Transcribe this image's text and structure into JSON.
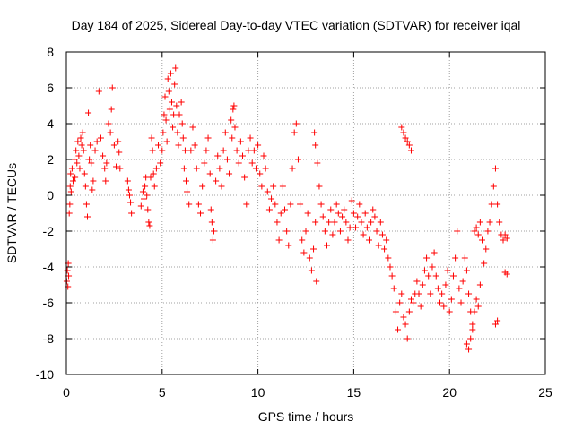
{
  "chart_data": {
    "type": "scatter",
    "title": "Day 184 of 2025, Sidereal Day-to-day VTEC variation (SDTVAR) for receiver iqal",
    "xlabel": "GPS time / hours",
    "ylabel": "SDTVAR / TECUs",
    "xlim": [
      0,
      25
    ],
    "ylim": [
      -10,
      8
    ],
    "xticks": [
      0,
      5,
      10,
      15,
      20,
      25
    ],
    "yticks": [
      -10,
      -8,
      -6,
      -4,
      -2,
      0,
      2,
      4,
      6,
      8
    ],
    "xtick_labels": [
      "0",
      "5",
      "10",
      "15",
      "20",
      "25"
    ],
    "ytick_labels": [
      "-10",
      "-8",
      "-6",
      "-4",
      "-2",
      "0",
      "2",
      "4",
      "6",
      "8"
    ],
    "grid": true,
    "marker": "+",
    "color": "#ff0000",
    "series": [
      {
        "name": "iqal",
        "points": [
          [
            0.02,
            -4.8
          ],
          [
            0.05,
            -4.2
          ],
          [
            0.08,
            -5.1
          ],
          [
            0.1,
            -3.8
          ],
          [
            0.12,
            -4.5
          ],
          [
            0.15,
            -1.0
          ],
          [
            0.18,
            -0.5
          ],
          [
            0.2,
            0.5
          ],
          [
            0.22,
            1.2
          ],
          [
            0.25,
            0.2
          ],
          [
            0.3,
            1.5
          ],
          [
            0.35,
            0.8
          ],
          [
            0.4,
            2.0
          ],
          [
            0.45,
            1.0
          ],
          [
            0.5,
            2.5
          ],
          [
            0.55,
            1.8
          ],
          [
            0.6,
            3.0
          ],
          [
            0.65,
            2.2
          ],
          [
            0.7,
            1.5
          ],
          [
            0.75,
            3.2
          ],
          [
            0.8,
            2.8
          ],
          [
            0.85,
            3.5
          ],
          [
            0.9,
            2.5
          ],
          [
            0.95,
            1.2
          ],
          [
            1.0,
            0.5
          ],
          [
            1.05,
            -0.5
          ],
          [
            1.1,
            -1.2
          ],
          [
            1.15,
            4.6
          ],
          [
            1.2,
            2.0
          ],
          [
            1.25,
            2.8
          ],
          [
            1.3,
            1.8
          ],
          [
            1.35,
            0.3
          ],
          [
            1.4,
            0.8
          ],
          [
            1.5,
            2.5
          ],
          [
            1.6,
            3.0
          ],
          [
            1.7,
            5.8
          ],
          [
            1.8,
            3.2
          ],
          [
            1.9,
            2.2
          ],
          [
            2.0,
            1.5
          ],
          [
            2.05,
            0.8
          ],
          [
            2.1,
            1.8
          ],
          [
            2.2,
            4.0
          ],
          [
            2.3,
            3.5
          ],
          [
            2.35,
            4.8
          ],
          [
            2.4,
            6.0
          ],
          [
            2.5,
            2.8
          ],
          [
            2.6,
            1.6
          ],
          [
            2.7,
            3.0
          ],
          [
            2.75,
            2.4
          ],
          [
            2.8,
            1.5
          ],
          [
            3.2,
            0.8
          ],
          [
            3.25,
            0.3
          ],
          [
            3.3,
            0.0
          ],
          [
            3.35,
            -0.4
          ],
          [
            3.4,
            -1.0
          ],
          [
            3.9,
            -0.6
          ],
          [
            4.0,
            0.2
          ],
          [
            4.05,
            -0.2
          ],
          [
            4.1,
            0.5
          ],
          [
            4.15,
            1.0
          ],
          [
            4.2,
            0.0
          ],
          [
            4.25,
            -0.8
          ],
          [
            4.3,
            -1.5
          ],
          [
            4.35,
            -1.7
          ],
          [
            4.4,
            1.0
          ],
          [
            4.45,
            3.2
          ],
          [
            4.5,
            2.5
          ],
          [
            4.55,
            1.2
          ],
          [
            4.6,
            0.5
          ],
          [
            4.7,
            1.5
          ],
          [
            4.8,
            2.8
          ],
          [
            4.9,
            1.8
          ],
          [
            5.0,
            2.5
          ],
          [
            5.05,
            3.5
          ],
          [
            5.1,
            4.5
          ],
          [
            5.15,
            5.5
          ],
          [
            5.2,
            4.2
          ],
          [
            5.25,
            3.0
          ],
          [
            5.3,
            6.5
          ],
          [
            5.35,
            5.8
          ],
          [
            5.4,
            4.8
          ],
          [
            5.45,
            6.8
          ],
          [
            5.5,
            5.2
          ],
          [
            5.55,
            3.8
          ],
          [
            5.6,
            4.5
          ],
          [
            5.65,
            6.2
          ],
          [
            5.7,
            7.1
          ],
          [
            5.75,
            5.0
          ],
          [
            5.8,
            3.5
          ],
          [
            5.85,
            2.8
          ],
          [
            5.9,
            4.5
          ],
          [
            6.0,
            5.2
          ],
          [
            6.05,
            4.0
          ],
          [
            6.1,
            3.2
          ],
          [
            6.15,
            1.5
          ],
          [
            6.2,
            2.5
          ],
          [
            6.25,
            0.8
          ],
          [
            6.3,
            0.2
          ],
          [
            6.4,
            -0.5
          ],
          [
            6.5,
            2.5
          ],
          [
            6.6,
            3.8
          ],
          [
            6.7,
            2.8
          ],
          [
            6.8,
            1.5
          ],
          [
            6.9,
            -0.5
          ],
          [
            7.0,
            -1.0
          ],
          [
            7.1,
            0.5
          ],
          [
            7.2,
            1.8
          ],
          [
            7.3,
            2.5
          ],
          [
            7.4,
            3.2
          ],
          [
            7.5,
            1.2
          ],
          [
            7.55,
            -0.8
          ],
          [
            7.6,
            -1.5
          ],
          [
            7.65,
            -2.5
          ],
          [
            7.7,
            -2.0
          ],
          [
            7.8,
            0.8
          ],
          [
            7.9,
            2.2
          ],
          [
            8.0,
            1.5
          ],
          [
            8.1,
            0.5
          ],
          [
            8.2,
            2.5
          ],
          [
            8.3,
            3.5
          ],
          [
            8.4,
            2.0
          ],
          [
            8.5,
            1.2
          ],
          [
            8.6,
            4.2
          ],
          [
            8.65,
            3.2
          ],
          [
            8.7,
            4.8
          ],
          [
            8.75,
            5.0
          ],
          [
            8.8,
            3.8
          ],
          [
            8.9,
            2.5
          ],
          [
            9.0,
            1.8
          ],
          [
            9.1,
            3.0
          ],
          [
            9.2,
            2.2
          ],
          [
            9.3,
            1.0
          ],
          [
            9.4,
            -0.5
          ],
          [
            9.5,
            2.5
          ],
          [
            9.6,
            3.2
          ],
          [
            9.7,
            1.8
          ],
          [
            9.8,
            2.5
          ],
          [
            9.9,
            1.5
          ],
          [
            10.0,
            2.8
          ],
          [
            10.1,
            1.2
          ],
          [
            10.2,
            0.5
          ],
          [
            10.3,
            2.2
          ],
          [
            10.4,
            1.5
          ],
          [
            10.5,
            0.2
          ],
          [
            10.6,
            -0.8
          ],
          [
            10.7,
            -0.2
          ],
          [
            10.8,
            0.5
          ],
          [
            10.9,
            -0.5
          ],
          [
            11.0,
            -1.5
          ],
          [
            11.1,
            -2.5
          ],
          [
            11.2,
            -1.0
          ],
          [
            11.3,
            0.5
          ],
          [
            11.4,
            -0.8
          ],
          [
            11.5,
            -2.0
          ],
          [
            11.6,
            -2.8
          ],
          [
            11.7,
            -0.5
          ],
          [
            11.8,
            1.5
          ],
          [
            11.9,
            3.5
          ],
          [
            12.0,
            4.0
          ],
          [
            12.1,
            2.0
          ],
          [
            12.2,
            -0.5
          ],
          [
            12.3,
            -2.5
          ],
          [
            12.4,
            -3.2
          ],
          [
            12.5,
            -2.0
          ],
          [
            12.6,
            -1.0
          ],
          [
            12.7,
            -3.5
          ],
          [
            12.8,
            -4.2
          ],
          [
            12.9,
            -3.0
          ],
          [
            13.0,
            -1.5
          ],
          [
            13.05,
            -4.8
          ],
          [
            12.95,
            3.5
          ],
          [
            13.0,
            2.8
          ],
          [
            13.1,
            1.8
          ],
          [
            13.2,
            0.5
          ],
          [
            13.3,
            -0.5
          ],
          [
            13.4,
            -1.2
          ],
          [
            13.5,
            -2.0
          ],
          [
            13.6,
            -2.8
          ],
          [
            13.7,
            -1.5
          ],
          [
            13.8,
            -0.8
          ],
          [
            13.9,
            -2.2
          ],
          [
            14.0,
            -1.5
          ],
          [
            14.1,
            -0.5
          ],
          [
            14.2,
            -1.0
          ],
          [
            14.3,
            -2.0
          ],
          [
            14.4,
            -1.2
          ],
          [
            14.5,
            -0.8
          ],
          [
            14.6,
            -1.5
          ],
          [
            14.7,
            -2.5
          ],
          [
            14.8,
            -1.8
          ],
          [
            14.9,
            -0.3
          ],
          [
            15.0,
            -1.0
          ],
          [
            15.1,
            -1.8
          ],
          [
            15.2,
            -1.2
          ],
          [
            15.3,
            -0.5
          ],
          [
            15.4,
            -1.5
          ],
          [
            15.5,
            -2.2
          ],
          [
            15.6,
            -1.0
          ],
          [
            15.7,
            -1.8
          ],
          [
            15.8,
            -2.5
          ],
          [
            15.9,
            -1.5
          ],
          [
            16.0,
            -0.8
          ],
          [
            16.1,
            -1.2
          ],
          [
            16.2,
            -2.0
          ],
          [
            16.3,
            -2.8
          ],
          [
            16.4,
            -1.5
          ],
          [
            16.5,
            -2.2
          ],
          [
            16.6,
            -3.0
          ],
          [
            16.7,
            -2.5
          ],
          [
            16.8,
            -3.5
          ],
          [
            16.9,
            -4.0
          ],
          [
            17.0,
            -4.5
          ],
          [
            17.1,
            -5.2
          ],
          [
            17.2,
            -6.5
          ],
          [
            17.3,
            -7.5
          ],
          [
            17.4,
            -6.0
          ],
          [
            17.5,
            -5.5
          ],
          [
            17.6,
            -6.8
          ],
          [
            17.7,
            -7.2
          ],
          [
            17.8,
            -8.0
          ],
          [
            17.9,
            -6.5
          ],
          [
            18.0,
            -5.8
          ],
          [
            17.5,
            3.8
          ],
          [
            17.6,
            3.5
          ],
          [
            17.7,
            3.2
          ],
          [
            17.8,
            3.0
          ],
          [
            17.9,
            2.8
          ],
          [
            18.0,
            2.5
          ],
          [
            18.1,
            -6.0
          ],
          [
            18.2,
            -5.5
          ],
          [
            18.3,
            -4.8
          ],
          [
            18.4,
            -5.5
          ],
          [
            18.5,
            -6.2
          ],
          [
            18.6,
            -5.0
          ],
          [
            18.7,
            -4.2
          ],
          [
            18.8,
            -3.5
          ],
          [
            18.9,
            -4.5
          ],
          [
            19.0,
            -5.5
          ],
          [
            19.1,
            -4.0
          ],
          [
            19.2,
            -3.2
          ],
          [
            19.3,
            -4.5
          ],
          [
            19.4,
            -5.2
          ],
          [
            19.5,
            -6.0
          ],
          [
            19.6,
            -5.5
          ],
          [
            19.7,
            -6.2
          ],
          [
            19.8,
            -5.0
          ],
          [
            19.9,
            -4.2
          ],
          [
            20.0,
            -6.5
          ],
          [
            20.1,
            -5.8
          ],
          [
            20.2,
            -4.5
          ],
          [
            20.3,
            -3.5
          ],
          [
            20.4,
            -2.0
          ],
          [
            20.5,
            -5.2
          ],
          [
            20.6,
            -6.0
          ],
          [
            20.7,
            -4.8
          ],
          [
            20.8,
            -3.5
          ],
          [
            20.9,
            -4.2
          ],
          [
            21.0,
            -5.5
          ],
          [
            21.1,
            -6.5
          ],
          [
            21.2,
            -7.5
          ],
          [
            20.9,
            -8.3
          ],
          [
            21.0,
            -8.6
          ],
          [
            21.1,
            -8.0
          ],
          [
            21.2,
            -7.2
          ],
          [
            21.3,
            -6.5
          ],
          [
            21.4,
            -5.8
          ],
          [
            21.5,
            -6.2
          ],
          [
            21.6,
            -5.0
          ],
          [
            21.3,
            -2.0
          ],
          [
            21.4,
            -1.8
          ],
          [
            21.5,
            -2.2
          ],
          [
            21.6,
            -1.5
          ],
          [
            21.7,
            -2.5
          ],
          [
            21.8,
            -3.8
          ],
          [
            21.9,
            -3.0
          ],
          [
            22.0,
            -2.0
          ],
          [
            22.1,
            -1.5
          ],
          [
            22.2,
            -0.5
          ],
          [
            22.3,
            0.5
          ],
          [
            22.4,
            1.5
          ],
          [
            22.5,
            -0.5
          ],
          [
            22.6,
            -1.5
          ],
          [
            22.7,
            -2.2
          ],
          [
            22.8,
            -2.5
          ],
          [
            22.4,
            -7.2
          ],
          [
            22.5,
            -7.0
          ],
          [
            22.9,
            -4.3
          ],
          [
            23.0,
            -4.4
          ],
          [
            22.9,
            -2.2
          ],
          [
            23.0,
            -2.4
          ]
        ]
      }
    ]
  }
}
